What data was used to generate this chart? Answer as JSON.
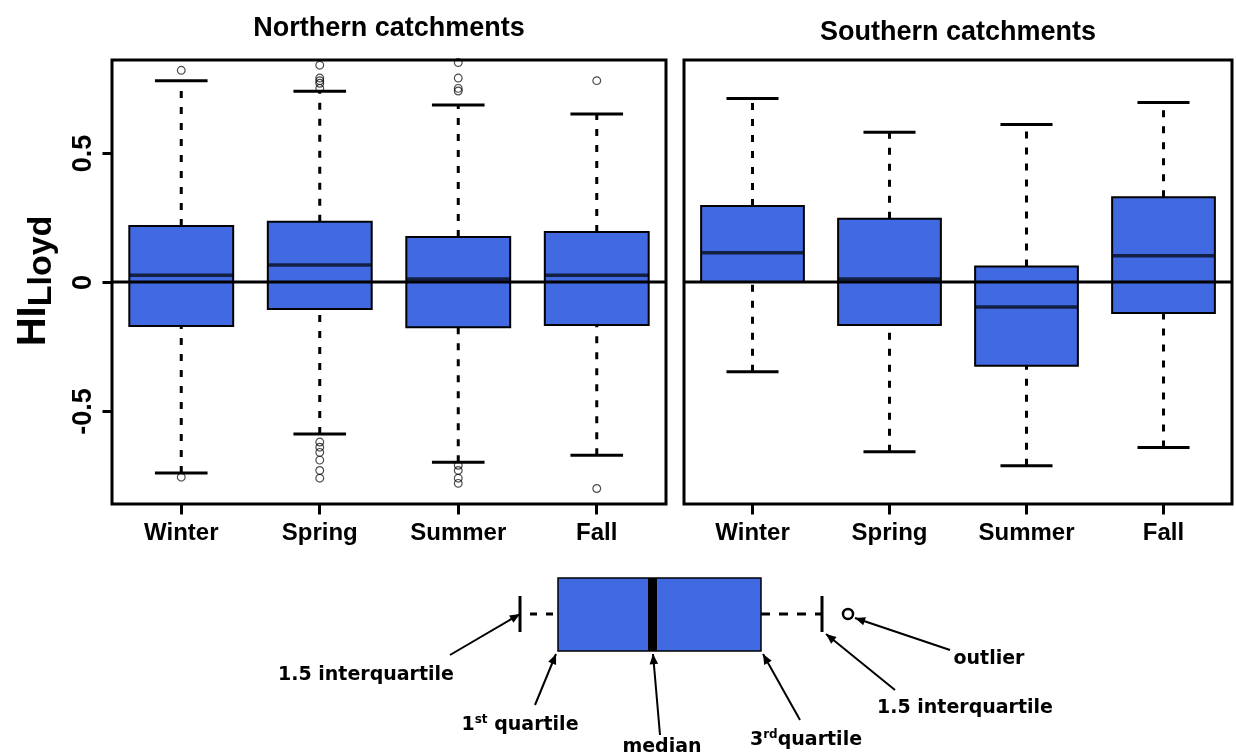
{
  "chart_data": [
    {
      "type": "box",
      "title": "Northern catchments",
      "ylabel": "HI$_{Lloyd}$",
      "categories": [
        "Winter",
        "Spring",
        "Summer",
        "Fall"
      ],
      "ylim": [
        -0.86,
        0.86
      ],
      "yticks": [
        -0.5,
        0,
        0.5
      ],
      "grid": false,
      "ref_lines": [
        {
          "axis": "y",
          "value": 0
        }
      ],
      "series": [
        {
          "color": "#4169e1",
          "boxes": [
            {
              "low": -0.74,
              "q1": -0.17,
              "median": 0.026,
              "q3": 0.217,
              "high": 0.78,
              "outliers": [
                0.82,
                -0.756
              ]
            },
            {
              "low": -0.589,
              "q1": -0.105,
              "median": 0.066,
              "q3": 0.233,
              "high": 0.739,
              "outliers": [
                0.84,
                0.79,
                0.78,
                0.77,
                0.75,
                -0.62,
                -0.64,
                -0.66,
                -0.69,
                -0.73,
                -0.76
              ]
            },
            {
              "low": -0.698,
              "q1": -0.175,
              "median": 0.012,
              "q3": 0.174,
              "high": 0.686,
              "outliers": [
                0.85,
                0.79,
                0.75,
                0.74,
                -0.71,
                -0.73,
                -0.76,
                -0.78
              ]
            },
            {
              "low": -0.671,
              "q1": -0.167,
              "median": 0.026,
              "q3": 0.194,
              "high": 0.651,
              "outliers": [
                0.78,
                -0.8
              ]
            }
          ]
        }
      ]
    },
    {
      "type": "box",
      "title": "Southern catchments",
      "categories": [
        "Winter",
        "Spring",
        "Summer",
        "Fall"
      ],
      "ylim": [
        -0.86,
        0.86
      ],
      "tick_labels": "x",
      "grid": false,
      "ref_lines": [
        {
          "axis": "y",
          "value": 0
        }
      ],
      "series": [
        {
          "color": "#4169e1",
          "boxes": [
            {
              "low": -0.348,
              "q1": 0.0,
              "median": 0.113,
              "q3": 0.294,
              "high": 0.711
            },
            {
              "low": -0.658,
              "q1": -0.167,
              "median": 0.012,
              "q3": 0.245,
              "high": 0.58
            },
            {
              "low": -0.712,
              "q1": -0.324,
              "median": -0.097,
              "q3": 0.06,
              "high": 0.61
            },
            {
              "low": -0.641,
              "q1": -0.12,
              "median": 0.102,
              "q3": 0.328,
              "high": 0.695
            }
          ]
        }
      ]
    },
    {
      "type": "other",
      "annotations": [
        "1.5 interquartile",
        "1$^{st}$ quartile",
        "median",
        "3$^{rd}$quartile",
        "1.5 interquartile",
        "outlier"
      ]
    }
  ]
}
